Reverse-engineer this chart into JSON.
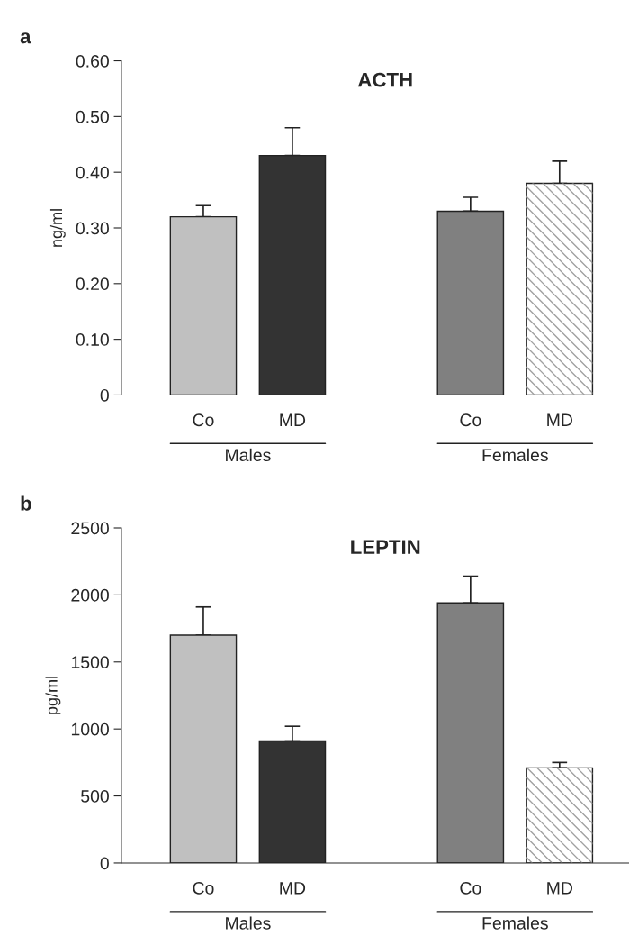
{
  "chart_data": [
    {
      "type": "bar",
      "title": "ACTH",
      "ylabel": "ng/ml",
      "categories": [
        "Co",
        "MD",
        null,
        "Co",
        "MD"
      ],
      "values": [
        0.32,
        0.43,
        null,
        0.33,
        0.38
      ],
      "colors": [
        "#c0c0c0",
        "#333333",
        "#ffffff",
        "#808080",
        "#ffffff"
      ],
      "errors": [
        [
          0.32,
          0.34
        ],
        [
          0.43,
          0.48
        ],
        null,
        [
          0.33,
          0.355
        ],
        [
          0.38,
          0.42
        ]
      ],
      "ylim": [
        0,
        0.6
      ],
      "yticks": [
        0,
        {
          "value": 0.1,
          "label": "0.10"
        },
        {
          "value": 0.2,
          "label": "0.20"
        },
        {
          "value": 0.3,
          "label": "0.30"
        },
        {
          "value": 0.4,
          "label": "0.40"
        },
        {
          "value": 0.5,
          "label": "0.50"
        },
        {
          "value": 0.6,
          "label": "0.60"
        }
      ],
      "annotations": [
        "a",
        "Males",
        "Females"
      ]
    },
    {
      "type": "bar",
      "title": "LEPTIN",
      "ylabel": "pg/ml",
      "categories": [
        "Co",
        "MD",
        null,
        "Co",
        "MD"
      ],
      "values": [
        1700,
        910,
        null,
        1940,
        710
      ],
      "colors": [
        "#c0c0c0",
        "#333333",
        "#ffffff",
        "#808080",
        "#ffffff"
      ],
      "errors": [
        [
          1700,
          1910
        ],
        [
          910,
          1020
        ],
        null,
        [
          1940,
          2140
        ],
        [
          710,
          750
        ]
      ],
      "ylim": [
        0,
        2500
      ],
      "yticks": [
        0,
        500,
        1000,
        1500,
        2000,
        2500
      ],
      "annotations": [
        "b",
        "Males",
        "Females"
      ]
    }
  ]
}
